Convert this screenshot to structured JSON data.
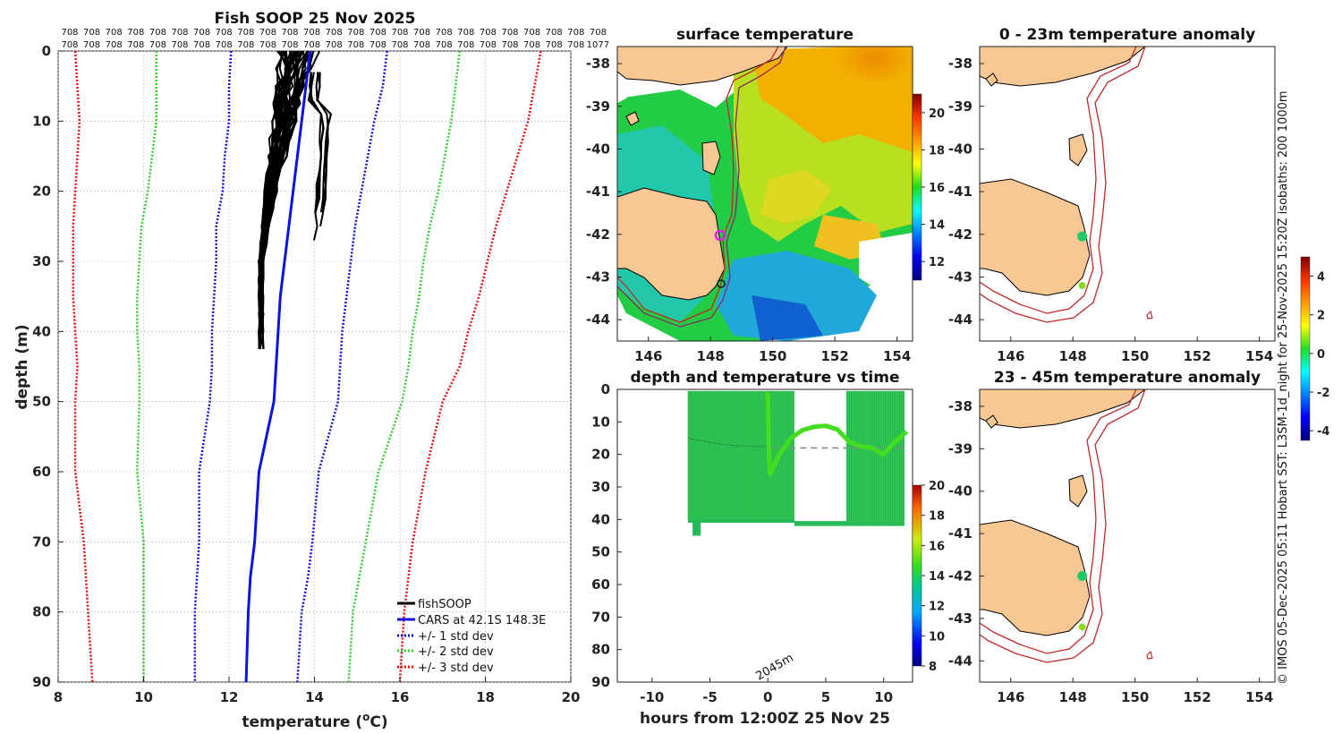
{
  "colors": {
    "obs": "#000000",
    "cars": "#0a14e0",
    "std1": "#1010c8",
    "std2": "#33cc33",
    "std3": "#e01010",
    "land": "#f7c794",
    "isobath": "#c0282a",
    "track": "#44dd22"
  },
  "chart_data": [
    {
      "id": "profile",
      "type": "line",
      "title": "Fish SOOP 25 Nov 2025",
      "xlabel": "temperature (",
      "xlabel_sup": "o",
      "xlabel_tail": "C)",
      "ylabel": "depth (m)",
      "xlim": [
        8,
        20
      ],
      "ylim": [
        0,
        90
      ],
      "xticks": [
        8,
        10,
        12,
        14,
        16,
        18,
        20
      ],
      "yticks": [
        0,
        10,
        20,
        30,
        40,
        50,
        60,
        70,
        80,
        90
      ],
      "counts_row1": [
        "708",
        "708",
        "708",
        "708",
        "708",
        "708",
        "708",
        "708",
        "708",
        "708",
        "708",
        "708",
        "708",
        "708",
        "708",
        "708",
        "708",
        "708",
        "708",
        "708",
        "708",
        "708",
        "708",
        "708",
        "708"
      ],
      "counts_row2": [
        "708",
        "708",
        "708",
        "708",
        "708",
        "708",
        "708",
        "708",
        "708",
        "708",
        "708",
        "708",
        "708",
        "708",
        "708",
        "708",
        "708",
        "708",
        "708",
        "708",
        "708",
        "708",
        "708",
        "708",
        "1077"
      ],
      "legend": [
        "fishSOOP",
        "CARS at 42.1S 148.3E",
        "+/- 1 std dev",
        "+/- 2 std dev",
        "+/- 3 std dev"
      ],
      "depths": [
        0,
        5,
        10,
        15,
        20,
        25,
        30,
        35,
        40,
        45,
        50,
        60,
        70,
        75,
        80,
        90
      ],
      "cars_mean": [
        13.9,
        13.8,
        13.7,
        13.6,
        13.5,
        13.4,
        13.3,
        13.2,
        13.15,
        13.1,
        13.05,
        12.7,
        12.6,
        12.5,
        12.45,
        12.4
      ],
      "std_minus3": [
        8.4,
        8.45,
        8.5,
        8.45,
        8.4,
        8.35,
        8.35,
        8.35,
        8.4,
        8.45,
        8.4,
        8.4,
        8.6,
        8.65,
        8.7,
        8.8
      ],
      "std_plus3": [
        19.3,
        19.15,
        19.0,
        18.75,
        18.5,
        18.25,
        18.05,
        17.85,
        17.6,
        17.4,
        17.0,
        16.6,
        16.3,
        16.2,
        16.1,
        16.0
      ],
      "std_minus2": [
        10.3,
        10.3,
        10.3,
        10.2,
        10.1,
        9.95,
        9.9,
        9.85,
        9.85,
        9.9,
        9.9,
        9.85,
        10.0,
        10.0,
        10.0,
        10.0
      ],
      "std_plus2": [
        17.4,
        17.3,
        17.2,
        17.05,
        16.9,
        16.7,
        16.55,
        16.45,
        16.3,
        16.2,
        16.05,
        15.5,
        15.2,
        15.05,
        14.9,
        14.8
      ],
      "std_minus1": [
        12.05,
        12.0,
        12.0,
        11.9,
        11.85,
        11.7,
        11.7,
        11.65,
        11.6,
        11.6,
        11.55,
        11.3,
        11.3,
        11.25,
        11.2,
        11.2
      ],
      "std_plus1": [
        15.7,
        15.6,
        15.4,
        15.25,
        15.1,
        14.95,
        14.85,
        14.75,
        14.65,
        14.6,
        14.55,
        14.1,
        13.95,
        13.85,
        13.7,
        13.6
      ],
      "obs_profiles": 36
    },
    {
      "id": "sst",
      "type": "heatmap",
      "title": "surface temperature",
      "xlim": [
        145,
        154.5
      ],
      "ylim": [
        -44.5,
        -37.6
      ],
      "xticks": [
        146,
        148,
        150,
        152,
        154
      ],
      "yticks": [
        -38,
        -39,
        -40,
        -41,
        -42,
        -43,
        -44
      ],
      "colorbar": {
        "min": 11,
        "max": 21,
        "ticks": [
          12,
          14,
          16,
          18,
          20
        ]
      }
    },
    {
      "id": "anom1",
      "type": "heatmap",
      "title": "0 - 23m temperature anomaly",
      "xlim": [
        145,
        154.5
      ],
      "ylim": [
        -44.5,
        -37.6
      ],
      "xticks": [
        146,
        148,
        150,
        152,
        154
      ],
      "yticks": [
        -38,
        -39,
        -40,
        -41,
        -42,
        -43,
        -44
      ],
      "points": [
        {
          "lon": 148.3,
          "lat": -42.05
        },
        {
          "lon": 148.3,
          "lat": -43.2
        }
      ]
    },
    {
      "id": "timeseries",
      "type": "scatter",
      "title": "depth and temperature vs time",
      "xlabel": "hours from 12:00Z 25 Nov 25",
      "xlim": [
        -13,
        12.5
      ],
      "ylim": [
        0,
        90
      ],
      "xticks": [
        -10,
        -5,
        0,
        5,
        10
      ],
      "yticks": [
        0,
        10,
        20,
        30,
        40,
        50,
        60,
        70,
        80,
        90
      ],
      "annotation": "2045m",
      "colorbar": {
        "min": 8,
        "max": 20,
        "ticks": [
          8,
          10,
          12,
          14,
          16,
          18,
          20
        ]
      }
    },
    {
      "id": "anom2",
      "type": "heatmap",
      "title": "23 - 45m temperature anomaly",
      "xlim": [
        145,
        154.5
      ],
      "ylim": [
        -44.5,
        -37.6
      ],
      "xticks": [
        146,
        148,
        150,
        152,
        154
      ],
      "yticks": [
        -38,
        -39,
        -40,
        -41,
        -42,
        -43,
        -44
      ],
      "points": [
        {
          "lon": 148.3,
          "lat": -42.0
        },
        {
          "lon": 148.3,
          "lat": -43.2
        }
      ]
    },
    {
      "id": "anomcb",
      "type": "colorbar",
      "min": -4.5,
      "max": 5,
      "ticks": [
        -4,
        -2,
        0,
        2,
        4
      ]
    }
  ],
  "side_note": "© IMOS 05-Dec-2025 05:11 Hobart SST: L3SM-1d_night for 25-Nov-2025 15:20Z isobaths: 200  1000m"
}
